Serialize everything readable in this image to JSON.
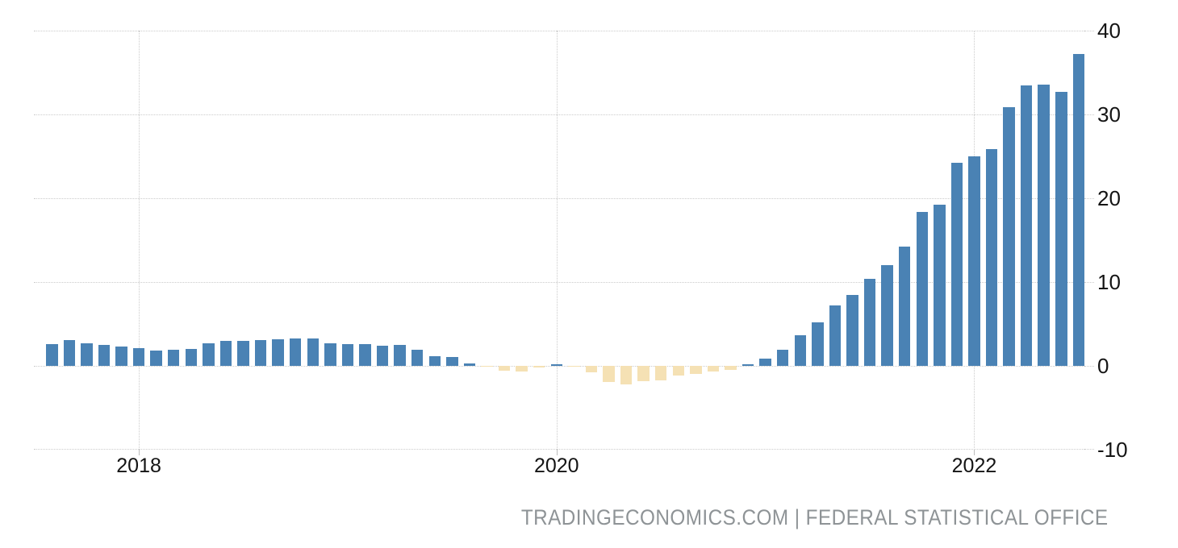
{
  "chart_data": {
    "type": "bar",
    "title": "",
    "xlabel": "",
    "ylabel": "",
    "x": [
      "2017-08",
      "2017-09",
      "2017-10",
      "2017-11",
      "2017-12",
      "2018-01",
      "2018-02",
      "2018-03",
      "2018-04",
      "2018-05",
      "2018-06",
      "2018-07",
      "2018-08",
      "2018-09",
      "2018-10",
      "2018-11",
      "2018-12",
      "2019-01",
      "2019-02",
      "2019-03",
      "2019-04",
      "2019-05",
      "2019-06",
      "2019-07",
      "2019-08",
      "2019-09",
      "2019-10",
      "2019-11",
      "2019-12",
      "2020-01",
      "2020-02",
      "2020-03",
      "2020-04",
      "2020-05",
      "2020-06",
      "2020-07",
      "2020-08",
      "2020-09",
      "2020-10",
      "2020-11",
      "2020-12",
      "2021-01",
      "2021-02",
      "2021-03",
      "2021-04",
      "2021-05",
      "2021-06",
      "2021-07",
      "2021-08",
      "2021-09",
      "2021-10",
      "2021-11",
      "2021-12",
      "2022-01",
      "2022-02",
      "2022-03",
      "2022-04",
      "2022-05",
      "2022-06",
      "2022-07"
    ],
    "values": [
      2.6,
      3.1,
      2.7,
      2.5,
      2.3,
      2.1,
      1.8,
      1.9,
      2.0,
      2.7,
      3.0,
      3.0,
      3.1,
      3.2,
      3.3,
      3.3,
      2.7,
      2.6,
      2.6,
      2.4,
      2.5,
      1.9,
      1.2,
      1.1,
      0.3,
      -0.1,
      -0.6,
      -0.7,
      -0.2,
      0.2,
      -0.1,
      -0.8,
      -1.9,
      -2.2,
      -1.8,
      -1.7,
      -1.2,
      -1.0,
      -0.7,
      -0.5,
      0.2,
      0.9,
      1.9,
      3.7,
      5.2,
      7.2,
      8.5,
      10.4,
      12.0,
      14.2,
      18.4,
      19.2,
      24.2,
      25.0,
      25.9,
      30.9,
      33.5,
      33.6,
      32.7,
      37.2
    ],
    "y_ticks": [
      40,
      30,
      20,
      10,
      0,
      -10
    ],
    "x_ticks": [
      {
        "label": "2018",
        "index": 5
      },
      {
        "label": "2020",
        "index": 29
      },
      {
        "label": "2022",
        "index": 53
      }
    ],
    "ylim": [
      -10,
      40
    ],
    "grid": "dotted",
    "legend": "none",
    "colors": {
      "positive": "#4A82B4",
      "negative": "#F5E1B4",
      "gridline": "#CBCBCB",
      "tick_label": "#141414"
    }
  },
  "attribution": {
    "text": "TRADINGECONOMICS.COM | FEDERAL STATISTICAL OFFICE",
    "color": "#8E9396"
  }
}
